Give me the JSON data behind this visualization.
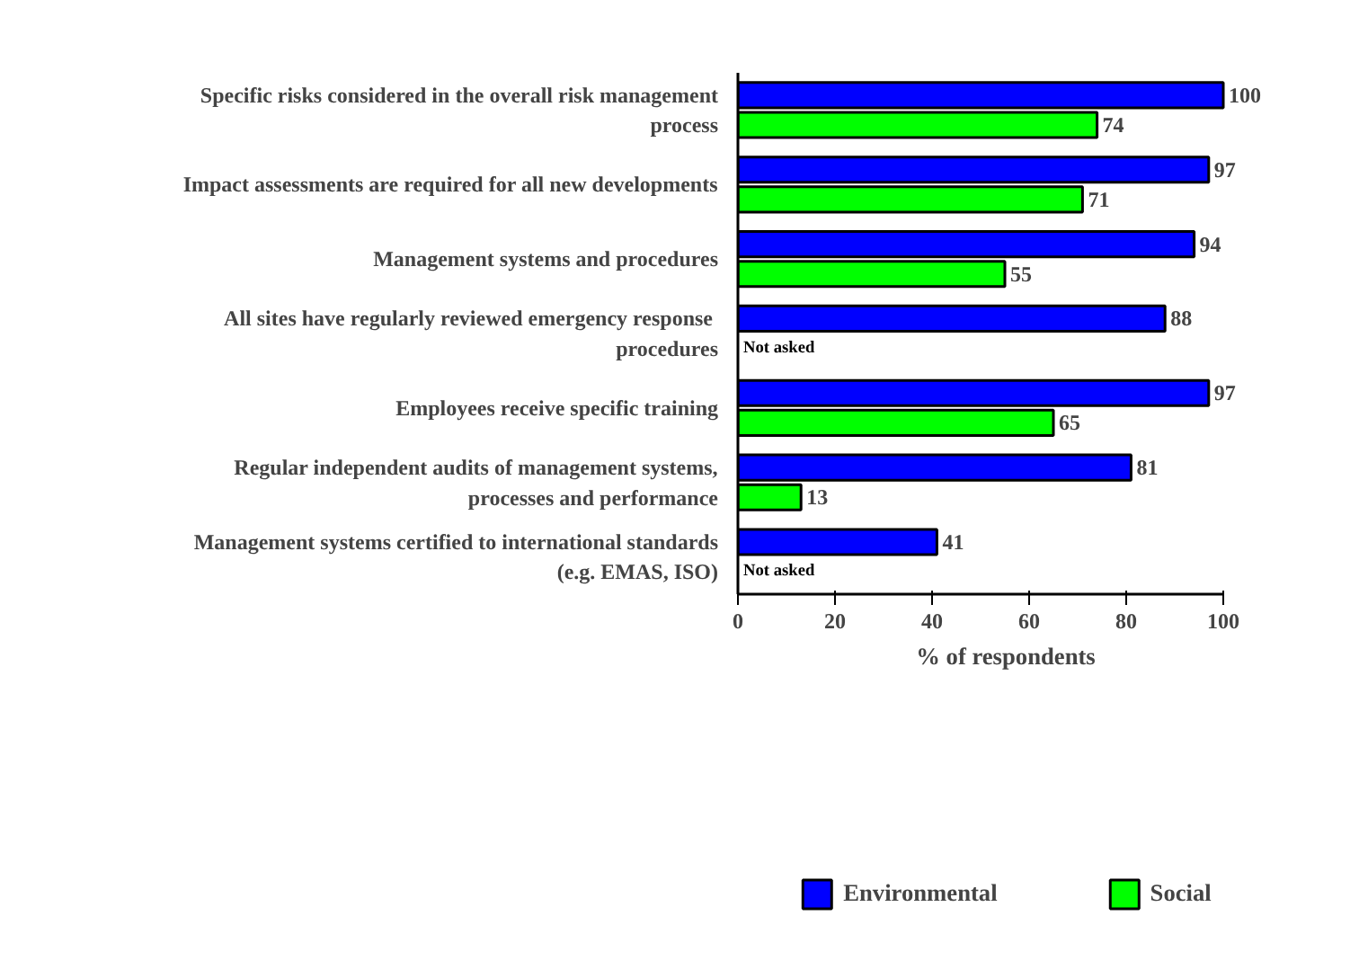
{
  "chart_data": {
    "type": "bar",
    "orientation": "horizontal",
    "categories": [
      "Specific risks considered in the overall risk management process",
      "Impact assessments are required for all new developments",
      "Management systems and procedures",
      "All sites have regularly reviewed emergency  response procedures",
      "Employees receive specific training",
      "Regular independent audits of management systems, processes and performance",
      "Management systems certified to international standards (e.g. EMAS, ISO)"
    ],
    "series": [
      {
        "name": "Environmental",
        "color": "#0000ff",
        "values": [
          100,
          97,
          94,
          88,
          97,
          81,
          41
        ]
      },
      {
        "name": "Social",
        "color": "#00ff00",
        "values": [
          74,
          71,
          55,
          null,
          65,
          13,
          null
        ]
      }
    ],
    "xlabel": "% of respondents",
    "xlim": [
      0,
      100
    ],
    "xticks": [
      0,
      20,
      40,
      60,
      80,
      100
    ],
    "data_labels": true,
    "grid": false,
    "legend": "bottom",
    "annotations": [
      {
        "text": "Not asked",
        "x": 0,
        "y": "All sites have regularly reviewed emergency  response procedures"
      },
      {
        "text": "Not asked",
        "x": 0,
        "y": "Management systems certified to international standards (e.g. EMAS, ISO)"
      }
    ]
  }
}
